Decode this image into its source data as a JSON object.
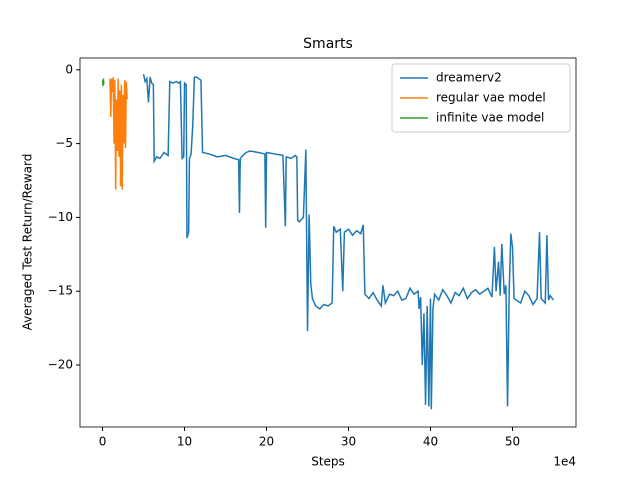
{
  "chart_data": {
    "type": "line",
    "title": "Smarts",
    "x_label": "Steps",
    "y_label": "Averaged Test Return/Reward",
    "x_offset_label": "1e4",
    "xlim": [
      -2.75,
      57.75
    ],
    "ylim": [
      -24.2,
      0.8
    ],
    "xticks": [
      0,
      10,
      20,
      30,
      40,
      50
    ],
    "yticks": [
      0,
      {
        "value": -5,
        "label": "−5"
      },
      {
        "value": -10,
        "label": "−10"
      },
      {
        "value": -15,
        "label": "−15"
      },
      {
        "value": -20,
        "label": "−20"
      }
    ],
    "legend": "upper right",
    "grid": false,
    "series": [
      {
        "name": "dreamerv2",
        "color": "#1f77b4",
        "x": [
          5.0,
          5.2,
          5.4,
          5.6,
          5.8,
          6.0,
          6.2,
          6.3,
          6.6,
          7.0,
          7.5,
          8.0,
          8.2,
          8.6,
          9.0,
          9.3,
          9.5,
          9.7,
          9.9,
          10.0,
          10.2,
          10.3,
          10.5,
          10.6,
          10.8,
          11.0,
          11.2,
          11.5,
          12.0,
          12.2,
          13,
          14,
          15,
          16,
          16.6,
          16.7,
          16.8,
          17.5,
          18,
          19,
          19.8,
          19.9,
          20.0,
          21,
          22,
          22.3,
          22.4,
          23,
          23.5,
          23.7,
          23.8,
          24,
          24.5,
          24.8,
          25.0,
          25.2,
          25.4,
          25.6,
          26,
          26.5,
          27,
          27.5,
          28,
          28.2,
          28.5,
          29,
          29.3,
          29.5,
          30,
          30.5,
          31,
          31.5,
          31.8,
          32,
          32.5,
          33,
          33.5,
          34,
          34.2,
          34.5,
          35,
          35.5,
          36,
          36.5,
          37,
          37.5,
          38,
          38.5,
          38.6,
          38.8,
          39.0,
          39.2,
          39.4,
          39.6,
          39.8,
          40.0,
          40.1,
          40.3,
          40.5,
          41,
          41.5,
          42,
          42.5,
          43,
          43.5,
          44,
          44.5,
          45,
          45.5,
          46,
          46.5,
          47,
          47.5,
          47.8,
          48,
          48.3,
          48.5,
          48.7,
          49,
          49.2,
          49.4,
          49.6,
          49.8,
          50,
          50.2,
          51,
          51.5,
          52,
          52.5,
          53,
          53.3,
          53.5,
          54,
          54.2,
          54.4,
          54.6,
          55
        ],
        "values": [
          -0.3,
          -0.8,
          -0.6,
          -2.2,
          -0.5,
          -0.9,
          -1.0,
          -6.2,
          -5.9,
          -6.0,
          -5.6,
          -5.8,
          -0.8,
          -0.9,
          -0.8,
          -0.9,
          -0.8,
          -6.0,
          -5.9,
          -0.9,
          -1.0,
          -11.4,
          -11.0,
          -6.0,
          -5.7,
          -3.8,
          -0.5,
          -0.5,
          -0.7,
          -5.6,
          -5.7,
          -5.9,
          -5.8,
          -6.0,
          -6.1,
          -9.7,
          -6.0,
          -5.6,
          -5.5,
          -5.6,
          -5.7,
          -10.7,
          -5.6,
          -5.7,
          -5.8,
          -10.6,
          -5.9,
          -6.0,
          -5.8,
          -5.9,
          -10.2,
          -10.3,
          -10.0,
          -5.4,
          -17.7,
          -9.8,
          -14.5,
          -15.5,
          -16.0,
          -16.2,
          -15.9,
          -16.0,
          -15.8,
          -10.6,
          -11.0,
          -10.8,
          -15.0,
          -11.0,
          -10.8,
          -11.2,
          -10.9,
          -11.1,
          -10.5,
          -15.2,
          -15.5,
          -15.1,
          -15.6,
          -16.0,
          -14.6,
          -15.8,
          -15.2,
          -15.3,
          -15.0,
          -15.6,
          -15.5,
          -14.8,
          -15.2,
          -15.0,
          -16.2,
          -15.4,
          -20.0,
          -16.5,
          -22.7,
          -16.0,
          -22.8,
          -15.5,
          -23.0,
          -16.2,
          -15.2,
          -15.6,
          -14.9,
          -15.3,
          -15.8,
          -15.1,
          -15.3,
          -14.8,
          -15.5,
          -15.1,
          -14.9,
          -15.2,
          -15.0,
          -14.8,
          -15.4,
          -12.0,
          -15.0,
          -13.0,
          -15.3,
          -11.8,
          -15.2,
          -14.6,
          -22.8,
          -15.0,
          -11.1,
          -12.0,
          -15.5,
          -15.8,
          -15.0,
          -15.3,
          -15.9,
          -15.5,
          -11.0,
          -15.5,
          -15.8,
          -11.2,
          -15.6,
          -15.3,
          -15.6
        ]
      },
      {
        "name": "regular vae model",
        "color": "#ff7f0e",
        "x": [
          0.9,
          1.0,
          1.1,
          1.2,
          1.3,
          1.4,
          1.5,
          1.6,
          1.7,
          1.8,
          1.9,
          2.0,
          2.1,
          2.2,
          2.3,
          2.4,
          2.5,
          2.6,
          2.7,
          2.8,
          2.9,
          3.0
        ],
        "values": [
          -0.6,
          -3.2,
          -0.6,
          -1.5,
          -0.5,
          -5.0,
          -0.7,
          -8.1,
          -2.0,
          -5.5,
          -0.6,
          -5.9,
          -1.4,
          -7.9,
          -1.0,
          -8.1,
          -1.7,
          -5.0,
          -0.7,
          -5.3,
          -0.8,
          -2.0
        ]
      },
      {
        "name": "infinite vae model",
        "color": "#2ca02c",
        "x": [
          0,
          0.05,
          0.1,
          0.15
        ],
        "values": [
          -0.7,
          -1.1,
          -0.6,
          -1.0
        ]
      }
    ]
  }
}
